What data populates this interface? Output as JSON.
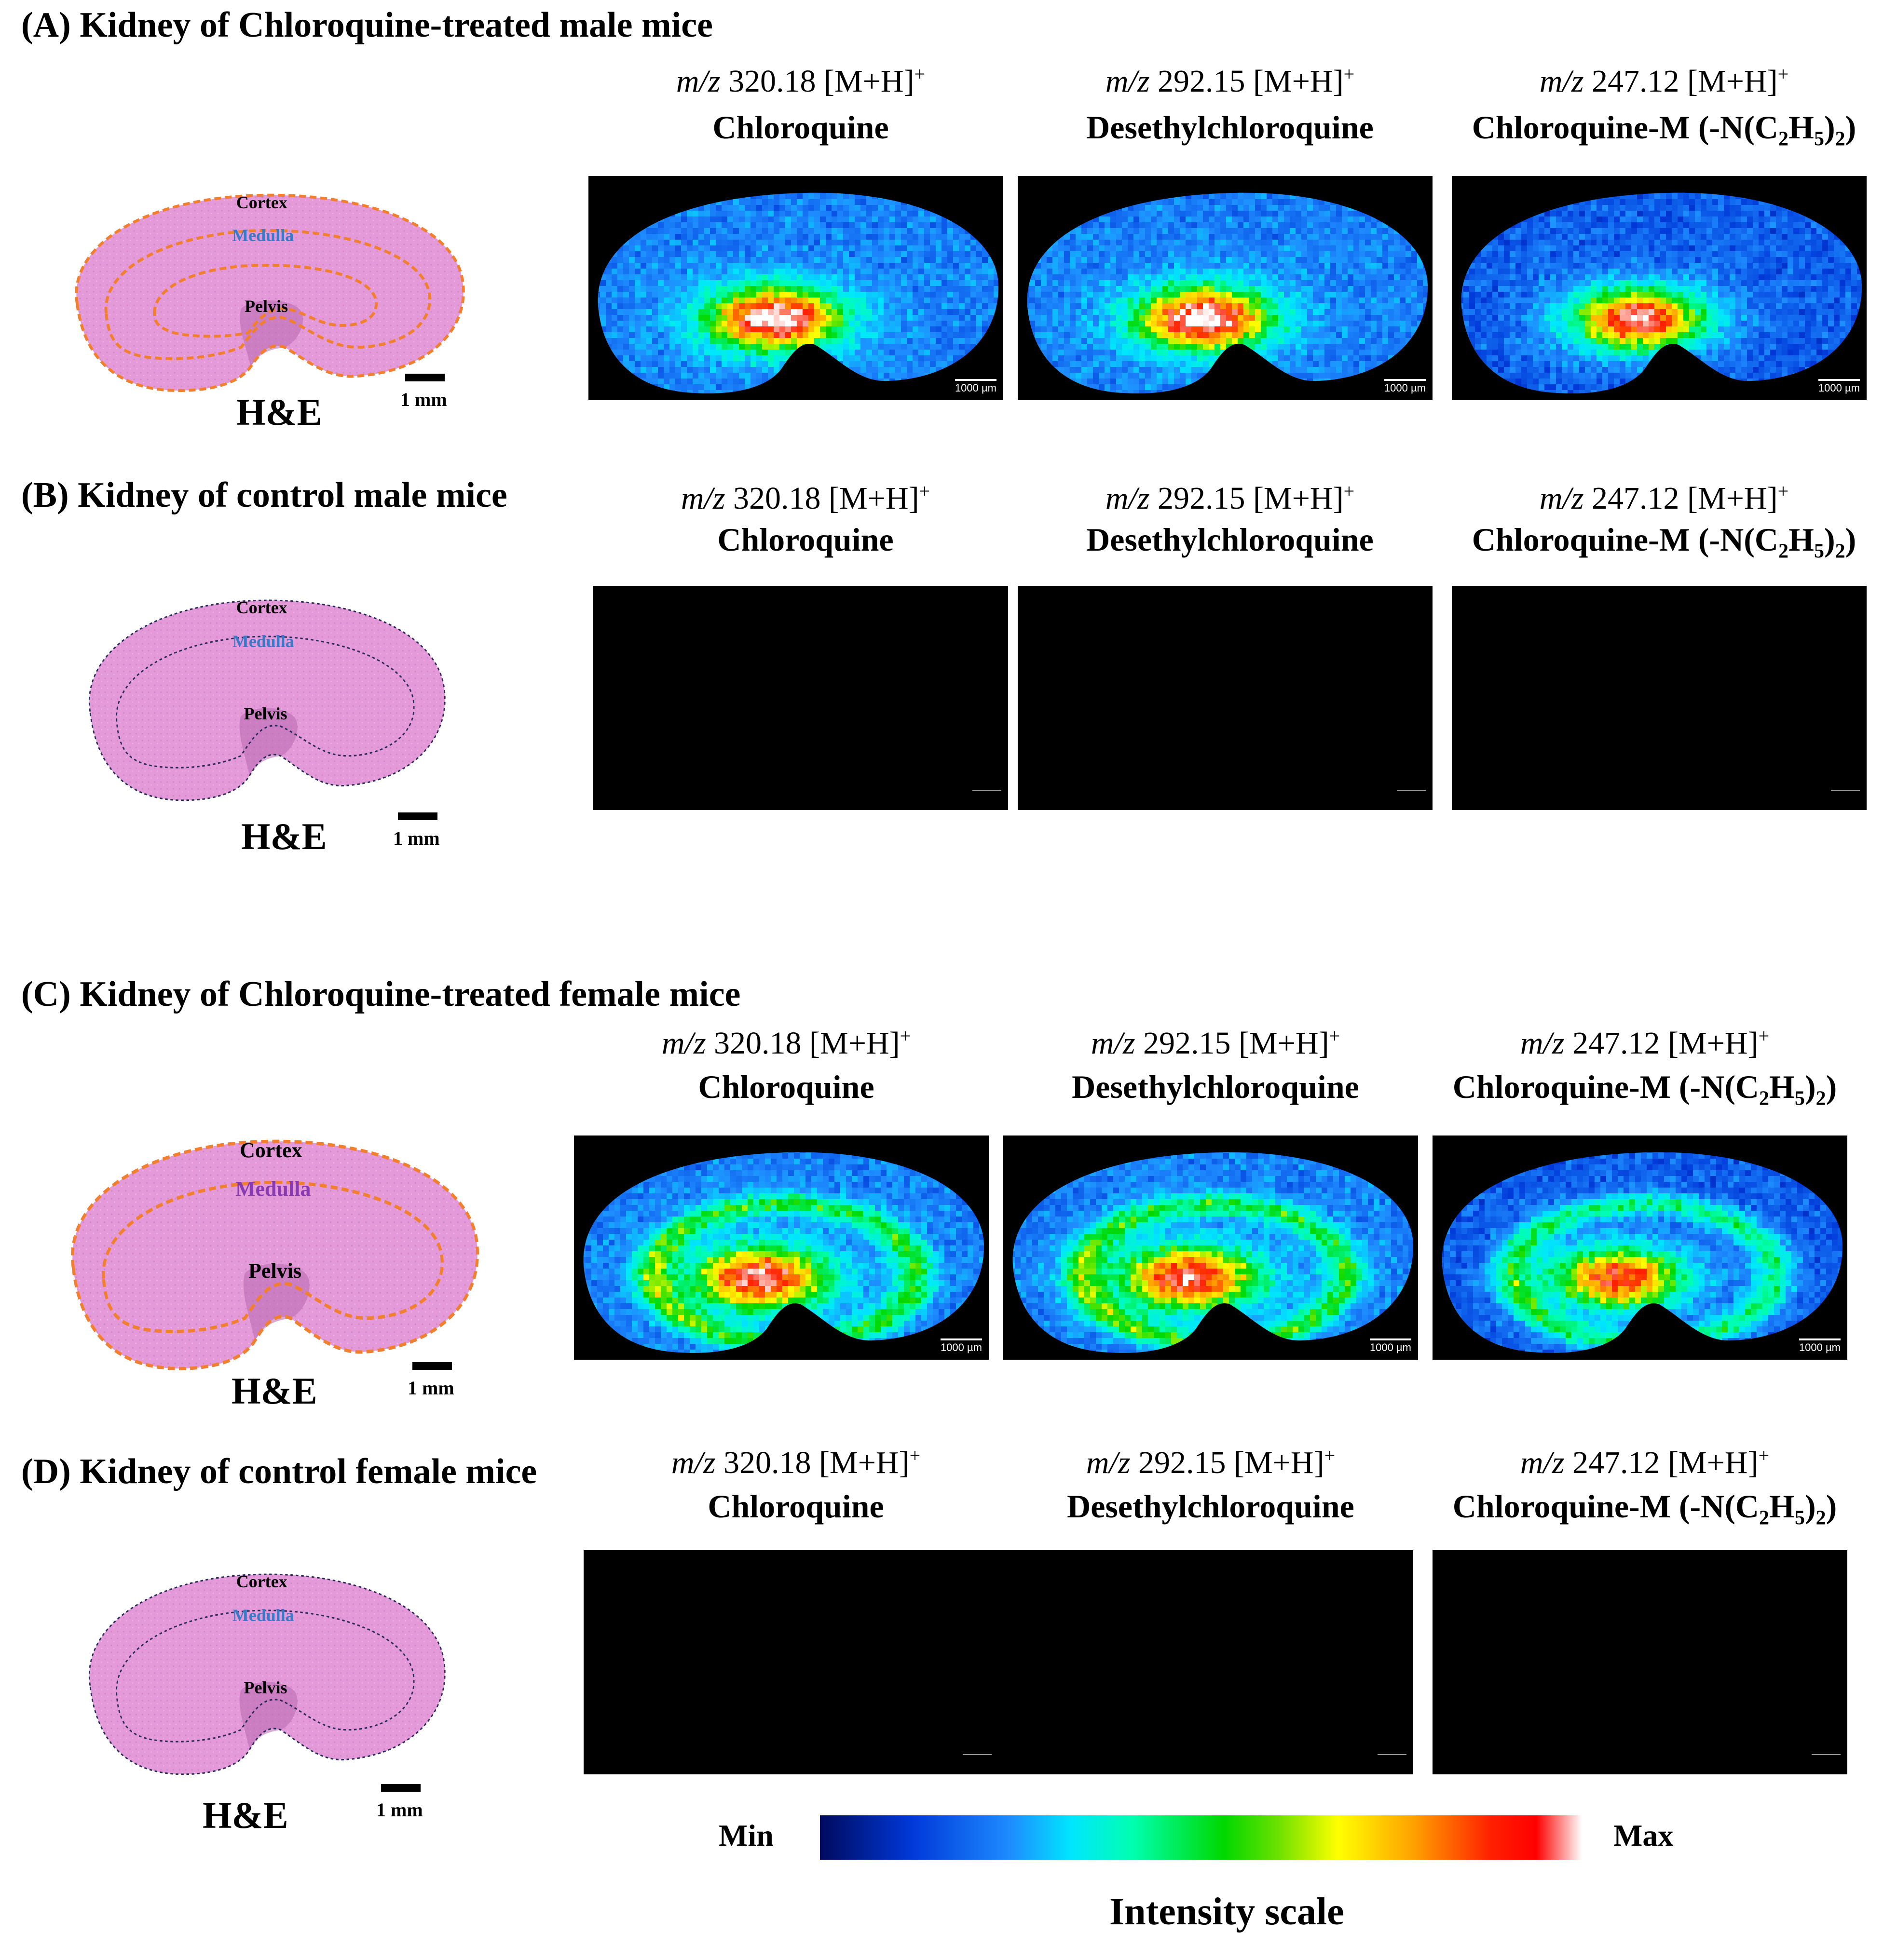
{
  "panels": [
    {
      "id": "A",
      "title": "(A) Kidney of Chloroquine-treated male mice",
      "style": "treated",
      "outline_color": "#f08030",
      "medulla_color": "#3a78c8"
    },
    {
      "id": "B",
      "title": "(B) Kidney of control male mice",
      "style": "control",
      "outline_color": "#2a2a5a",
      "medulla_color": "#3a78c8"
    },
    {
      "id": "C",
      "title": "(C) Kidney of Chloroquine-treated female mice",
      "style": "treated",
      "outline_color": "#f08030",
      "medulla_color": "#8a3ab0"
    },
    {
      "id": "D",
      "title": "(D) Kidney of control female mice",
      "style": "control",
      "outline_color": "#2a2a5a",
      "medulla_color": "#3a78c8"
    }
  ],
  "regions": {
    "cortex": "Cortex",
    "medulla": "Medulla",
    "pelvis": "Pelvis"
  },
  "he_label": "H&E",
  "he_scale_label": "1 mm",
  "ion_scale_label": "1000 µm",
  "ions": [
    {
      "mz_prefix": "m/z",
      "mz_value": "320.18 [M+H]",
      "charge": "+",
      "compound": "Chloroquine"
    },
    {
      "mz_prefix": "m/z",
      "mz_value": "292.15 [M+H]",
      "charge": "+",
      "compound": "Desethylchloroquine"
    },
    {
      "mz_prefix": "m/z",
      "mz_value": "247.12 [M+H]",
      "charge": "+",
      "compound_pre": "Chloroquine-M (-N(C",
      "sub1": "2",
      "compound_mid": "H",
      "sub2": "5",
      "compound_post": ")",
      "sub3": "2",
      "compound_end": ")"
    }
  ],
  "legend": {
    "min": "Min",
    "max": "Max",
    "title": "Intensity scale"
  },
  "colors": {
    "he_tissue": "#e49ad8",
    "he_tissue_dark": "#c878c0",
    "ion_background": "#000000"
  }
}
